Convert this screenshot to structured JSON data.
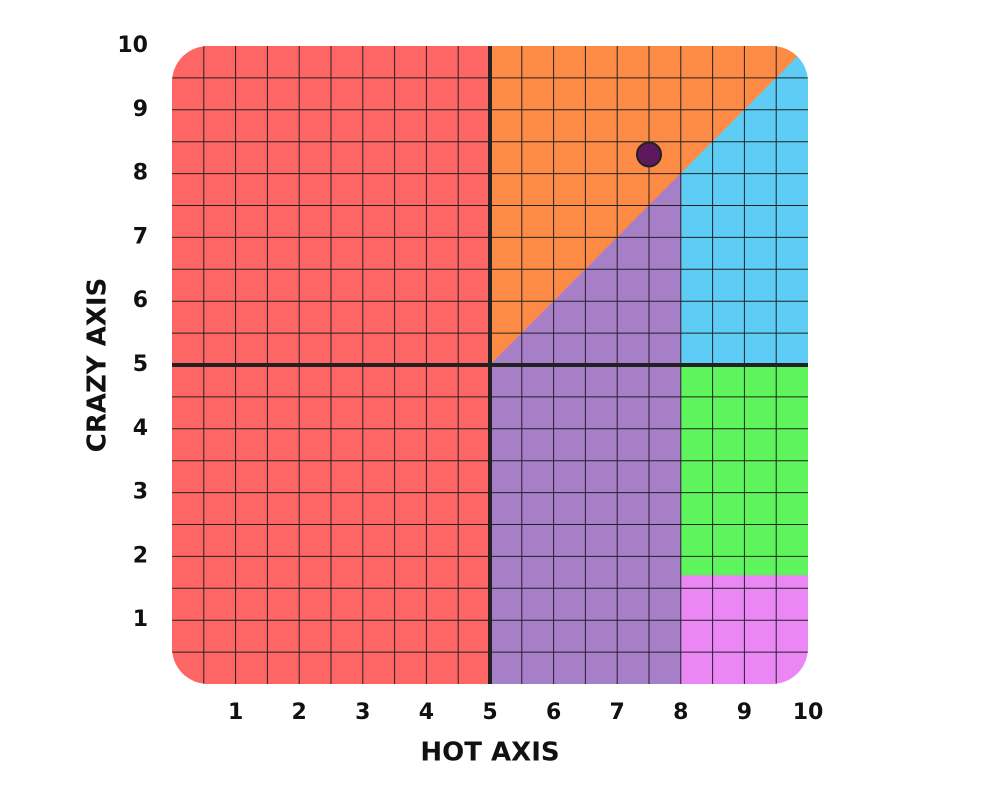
{
  "chart_data": {
    "type": "scatter",
    "xlabel": "HOT AXIS",
    "ylabel": "CRAZY AXIS",
    "xlim": [
      0,
      10
    ],
    "ylim": [
      0,
      10
    ],
    "xticks": [
      1,
      2,
      3,
      4,
      5,
      6,
      7,
      8,
      9,
      10
    ],
    "yticks": [
      1,
      2,
      3,
      4,
      5,
      6,
      7,
      8,
      9,
      10
    ],
    "minor_grid_step": 0.5,
    "center_lines": {
      "x": 5,
      "y": 5
    },
    "regions": [
      {
        "color": "#fe6565",
        "points": [
          [
            0,
            0
          ],
          [
            5,
            0
          ],
          [
            5,
            10
          ],
          [
            0,
            10
          ]
        ]
      },
      {
        "color": "#fd8a45",
        "points": [
          [
            5,
            5
          ],
          [
            5,
            10
          ],
          [
            10,
            10
          ]
        ]
      },
      {
        "color": "#5dcdf5",
        "points": [
          [
            8,
            8
          ],
          [
            10,
            10
          ],
          [
            10,
            5
          ],
          [
            8,
            5
          ]
        ]
      },
      {
        "color": "#a77ec8",
        "points": [
          [
            5,
            0
          ],
          [
            5,
            5
          ],
          [
            8,
            8
          ],
          [
            8,
            0
          ]
        ]
      },
      {
        "color": "#5ef55c",
        "points": [
          [
            8,
            1.7
          ],
          [
            8,
            5
          ],
          [
            10,
            5
          ],
          [
            10,
            1.7
          ]
        ]
      },
      {
        "color": "#ea87f5",
        "points": [
          [
            8,
            0
          ],
          [
            8,
            1.7
          ],
          [
            10,
            1.7
          ],
          [
            10,
            0
          ]
        ]
      }
    ],
    "x": [
      7.5
    ],
    "y": [
      8.3
    ],
    "color": "#5c1a5c"
  }
}
